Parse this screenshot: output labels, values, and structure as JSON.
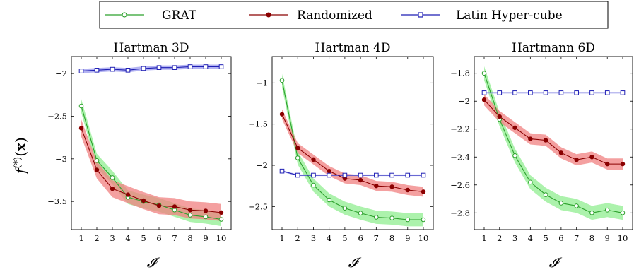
{
  "legend": {
    "items": [
      {
        "label": "GRAT",
        "color": "#2ca02c",
        "marker": "circle-open"
      },
      {
        "label": "Randomized",
        "color": "#8b0000",
        "marker": "circle-filled"
      },
      {
        "label": "Latin Hyper-cube",
        "color": "#00008b",
        "marker": "square-open"
      }
    ]
  },
  "ylabel": "f(*)(x)",
  "colors": {
    "GRAT": "#2ca02c",
    "GRAT_band": "#90ee90",
    "Randomized": "#8b0000",
    "Randomized_band": "#f08080",
    "Latin Hyper-cube": "#1f1fb4",
    "Latin_band": "#9a9aee"
  },
  "chart_data": [
    {
      "type": "line",
      "title": "Hartman 3D",
      "xlabel": "𝓘",
      "x": [
        1,
        2,
        3,
        4,
        5,
        6,
        7,
        8,
        9,
        10
      ],
      "xticks": [
        "1",
        "2",
        "3",
        "4",
        "5",
        "6",
        "7",
        "8",
        "9",
        "10"
      ],
      "ylim": [
        -3.83,
        -1.8
      ],
      "yticks": [
        -2,
        -2.5,
        -3,
        -3.5
      ],
      "ytick_labels": [
        "−2",
        "−2.5",
        "−3",
        "−3.5"
      ],
      "series": [
        {
          "name": "GRAT",
          "values": [
            -2.38,
            -3.02,
            -3.22,
            -3.45,
            -3.5,
            -3.54,
            -3.6,
            -3.66,
            -3.68,
            -3.71
          ],
          "band": 0.08
        },
        {
          "name": "Randomized",
          "values": [
            -2.64,
            -3.13,
            -3.35,
            -3.42,
            -3.49,
            -3.55,
            -3.56,
            -3.6,
            -3.61,
            -3.63
          ],
          "band": 0.1
        },
        {
          "name": "Latin Hyper-cube",
          "values": [
            -1.97,
            -1.96,
            -1.95,
            -1.96,
            -1.94,
            -1.93,
            -1.93,
            -1.92,
            -1.92,
            -1.92
          ],
          "band": 0.025
        }
      ]
    },
    {
      "type": "line",
      "title": "Hartman 4D",
      "xlabel": "𝓘",
      "x": [
        1,
        2,
        3,
        4,
        5,
        6,
        7,
        8,
        9,
        10
      ],
      "xticks": [
        "1",
        "2",
        "3",
        "4",
        "5",
        "6",
        "7",
        "8",
        "9",
        "10"
      ],
      "ylim": [
        -2.78,
        -0.68
      ],
      "yticks": [
        -1,
        -1.5,
        -2,
        -2.5
      ],
      "ytick_labels": [
        "−1",
        "−1.5",
        "−2",
        "−2.5"
      ],
      "series": [
        {
          "name": "GRAT",
          "values": [
            -0.97,
            -1.91,
            -2.24,
            -2.42,
            -2.52,
            -2.58,
            -2.63,
            -2.64,
            -2.66,
            -2.66
          ],
          "band": 0.08
        },
        {
          "name": "Randomized",
          "values": [
            -1.38,
            -1.79,
            -1.93,
            -2.07,
            -2.16,
            -2.18,
            -2.25,
            -2.26,
            -2.3,
            -2.32
          ],
          "band": 0.06
        },
        {
          "name": "Latin Hyper-cube",
          "values": [
            -2.07,
            -2.12,
            -2.12,
            -2.12,
            -2.12,
            -2.12,
            -2.12,
            -2.12,
            -2.12,
            -2.12
          ],
          "band": 0.01
        }
      ]
    },
    {
      "type": "line",
      "title": "Hartmann 6D",
      "xlabel": "𝓘",
      "x": [
        1,
        2,
        3,
        4,
        5,
        6,
        7,
        8,
        9,
        10
      ],
      "xticks": [
        "1",
        "2",
        "3",
        "4",
        "5",
        "6",
        "7",
        "8",
        "9",
        "10"
      ],
      "ylim": [
        -2.92,
        -1.68
      ],
      "yticks": [
        -1.8,
        -2,
        -2.2,
        -2.4,
        -2.6,
        -2.8
      ],
      "ytick_labels": [
        "−1.8",
        "−2",
        "−2.2",
        "−2.4",
        "−2.6",
        "−2.8"
      ],
      "series": [
        {
          "name": "GRAT",
          "values": [
            -1.8,
            -2.13,
            -2.39,
            -2.58,
            -2.67,
            -2.73,
            -2.75,
            -2.8,
            -2.78,
            -2.8
          ],
          "band": 0.05
        },
        {
          "name": "Randomized",
          "values": [
            -1.99,
            -2.11,
            -2.19,
            -2.27,
            -2.28,
            -2.37,
            -2.42,
            -2.4,
            -2.45,
            -2.45
          ],
          "band": 0.04
        },
        {
          "name": "Latin Hyper-cube",
          "values": [
            -1.94,
            -1.94,
            -1.94,
            -1.94,
            -1.94,
            -1.94,
            -1.94,
            -1.94,
            -1.94,
            -1.94
          ],
          "band": 0.005
        }
      ]
    }
  ]
}
